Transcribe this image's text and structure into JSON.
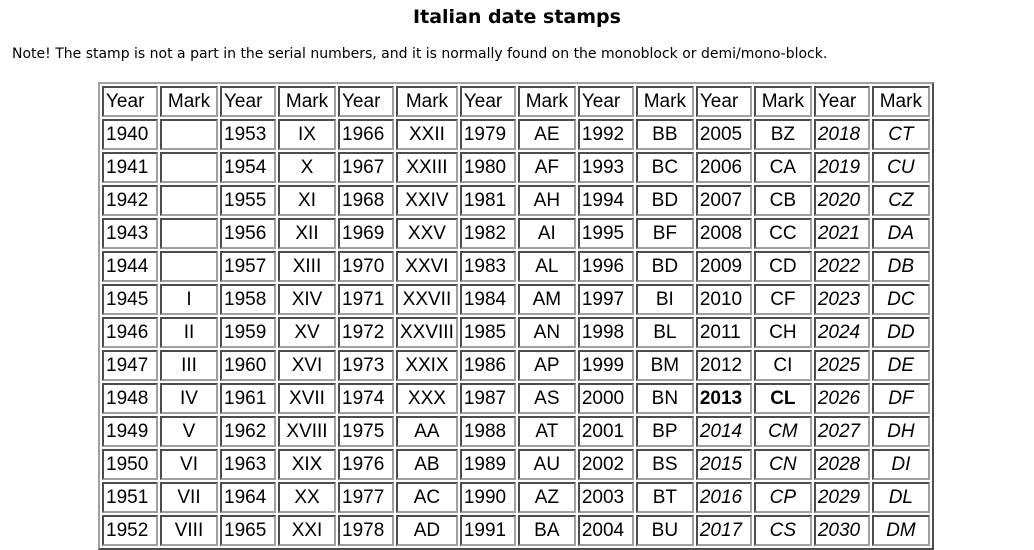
{
  "title": "Italian date stamps",
  "note": "Note! The stamp is not a part in the serial numbers, and it is normally found on the monoblock or demi/mono-block.",
  "table": {
    "headers": [
      "Year",
      "Mark",
      "Year",
      "Mark",
      "Year",
      "Mark",
      "Year",
      "Mark",
      "Year",
      "Mark",
      "Year",
      "Mark",
      "Year",
      "Mark"
    ],
    "rows": [
      [
        "1940",
        "",
        "1953",
        "IX",
        "1966",
        "XXII",
        "1979",
        "AE",
        "1992",
        "BB",
        "2005",
        "BZ",
        "2018",
        "CT"
      ],
      [
        "1941",
        "",
        "1954",
        "X",
        "1967",
        "XXIII",
        "1980",
        "AF",
        "1993",
        "BC",
        "2006",
        "CA",
        "2019",
        "CU"
      ],
      [
        "1942",
        "",
        "1955",
        "XI",
        "1968",
        "XXIV",
        "1981",
        "AH",
        "1994",
        "BD",
        "2007",
        "CB",
        "2020",
        "CZ"
      ],
      [
        "1943",
        "",
        "1956",
        "XII",
        "1969",
        "XXV",
        "1982",
        "AI",
        "1995",
        "BF",
        "2008",
        "CC",
        "2021",
        "DA"
      ],
      [
        "1944",
        "",
        "1957",
        "XIII",
        "1970",
        "XXVI",
        "1983",
        "AL",
        "1996",
        "BD",
        "2009",
        "CD",
        "2022",
        "DB"
      ],
      [
        "1945",
        "I",
        "1958",
        "XIV",
        "1971",
        "XXVII",
        "1984",
        "AM",
        "1997",
        "BI",
        "2010",
        "CF",
        "2023",
        "DC"
      ],
      [
        "1946",
        "II",
        "1959",
        "XV",
        "1972",
        "XXVIII",
        "1985",
        "AN",
        "1998",
        "BL",
        "2011",
        "CH",
        "2024",
        "DD"
      ],
      [
        "1947",
        "III",
        "1960",
        "XVI",
        "1973",
        "XXIX",
        "1986",
        "AP",
        "1999",
        "BM",
        "2012",
        "CI",
        "2025",
        "DE"
      ],
      [
        "1948",
        "IV",
        "1961",
        "XVII",
        "1974",
        "XXX",
        "1987",
        "AS",
        "2000",
        "BN",
        "2013",
        "CL",
        "2026",
        "DF"
      ],
      [
        "1949",
        "V",
        "1962",
        "XVIII",
        "1975",
        "AA",
        "1988",
        "AT",
        "2001",
        "BP",
        "2014",
        "CM",
        "2027",
        "DH"
      ],
      [
        "1950",
        "VI",
        "1963",
        "XIX",
        "1976",
        "AB",
        "1989",
        "AU",
        "2002",
        "BS",
        "2015",
        "CN",
        "2028",
        "DI"
      ],
      [
        "1951",
        "VII",
        "1964",
        "XX",
        "1977",
        "AC",
        "1990",
        "AZ",
        "2003",
        "BT",
        "2016",
        "CP",
        "2029",
        "DL"
      ],
      [
        "1952",
        "VIII",
        "1965",
        "XXI",
        "1978",
        "AD",
        "1991",
        "BA",
        "2004",
        "BU",
        "2017",
        "CS",
        "2030",
        "DM"
      ]
    ],
    "emphasis": {
      "bold": [
        [
          8,
          10
        ],
        [
          8,
          11
        ]
      ],
      "italic": [
        [
          0,
          12
        ],
        [
          0,
          13
        ],
        [
          1,
          12
        ],
        [
          1,
          13
        ],
        [
          2,
          12
        ],
        [
          2,
          13
        ],
        [
          3,
          12
        ],
        [
          3,
          13
        ],
        [
          4,
          12
        ],
        [
          4,
          13
        ],
        [
          5,
          12
        ],
        [
          5,
          13
        ],
        [
          6,
          12
        ],
        [
          6,
          13
        ],
        [
          7,
          12
        ],
        [
          7,
          13
        ],
        [
          8,
          12
        ],
        [
          8,
          13
        ],
        [
          9,
          10
        ],
        [
          9,
          11
        ],
        [
          9,
          12
        ],
        [
          9,
          13
        ],
        [
          10,
          10
        ],
        [
          10,
          11
        ],
        [
          10,
          12
        ],
        [
          10,
          13
        ],
        [
          11,
          10
        ],
        [
          11,
          11
        ],
        [
          11,
          12
        ],
        [
          11,
          13
        ],
        [
          12,
          10
        ],
        [
          12,
          11
        ],
        [
          12,
          12
        ],
        [
          12,
          13
        ]
      ]
    }
  }
}
